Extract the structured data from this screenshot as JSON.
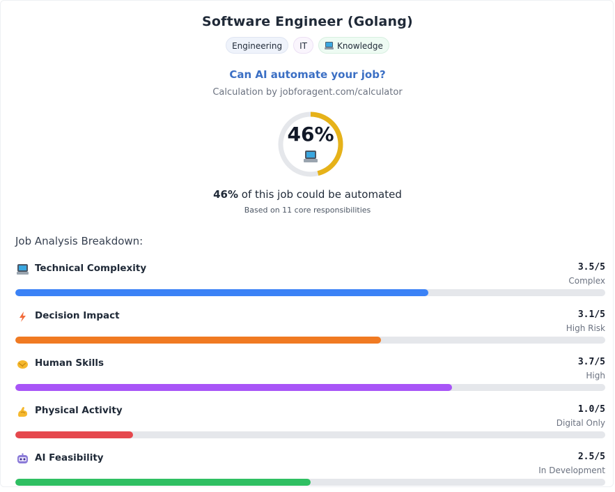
{
  "header": {
    "title": "Software Engineer (Golang)",
    "tags": [
      {
        "label": "Engineering"
      },
      {
        "label": "IT"
      },
      {
        "label": "Knowledge",
        "icon": "laptop-icon"
      }
    ],
    "question": "Can AI automate your job?",
    "calculation": "Calculation by jobforagent.com/calculator"
  },
  "gauge": {
    "percent_label": "46%",
    "percent_value": 46,
    "icon": "laptop-icon",
    "ring_color": "#e6b219",
    "track_color": "#e5e7eb"
  },
  "summary": {
    "bold": "46%",
    "rest": " of this job could be automated",
    "based_on": "Based on 11 core responsibilities"
  },
  "breakdown": {
    "heading": "Job Analysis Breakdown:",
    "metrics": [
      {
        "label": "Technical Complexity",
        "score": "3.5/5",
        "value": 3.5,
        "max": 5,
        "desc": "Complex",
        "color": "#3b82f6",
        "icon": "laptop-icon"
      },
      {
        "label": "Decision Impact",
        "score": "3.1/5",
        "value": 3.1,
        "max": 5,
        "desc": "High Risk",
        "color": "#f07a22",
        "icon": "lightning-icon"
      },
      {
        "label": "Human Skills",
        "score": "3.7/5",
        "value": 3.7,
        "max": 5,
        "desc": "High",
        "color": "#a855f7",
        "icon": "handshake-icon"
      },
      {
        "label": "Physical Activity",
        "score": "1.0/5",
        "value": 1.0,
        "max": 5,
        "desc": "Digital Only",
        "color": "#e5484d",
        "icon": "flexed-biceps-icon"
      },
      {
        "label": "AI Feasibility",
        "score": "2.5/5",
        "value": 2.5,
        "max": 5,
        "desc": "In Development",
        "color": "#2fbf62",
        "icon": "robot-icon"
      }
    ]
  }
}
